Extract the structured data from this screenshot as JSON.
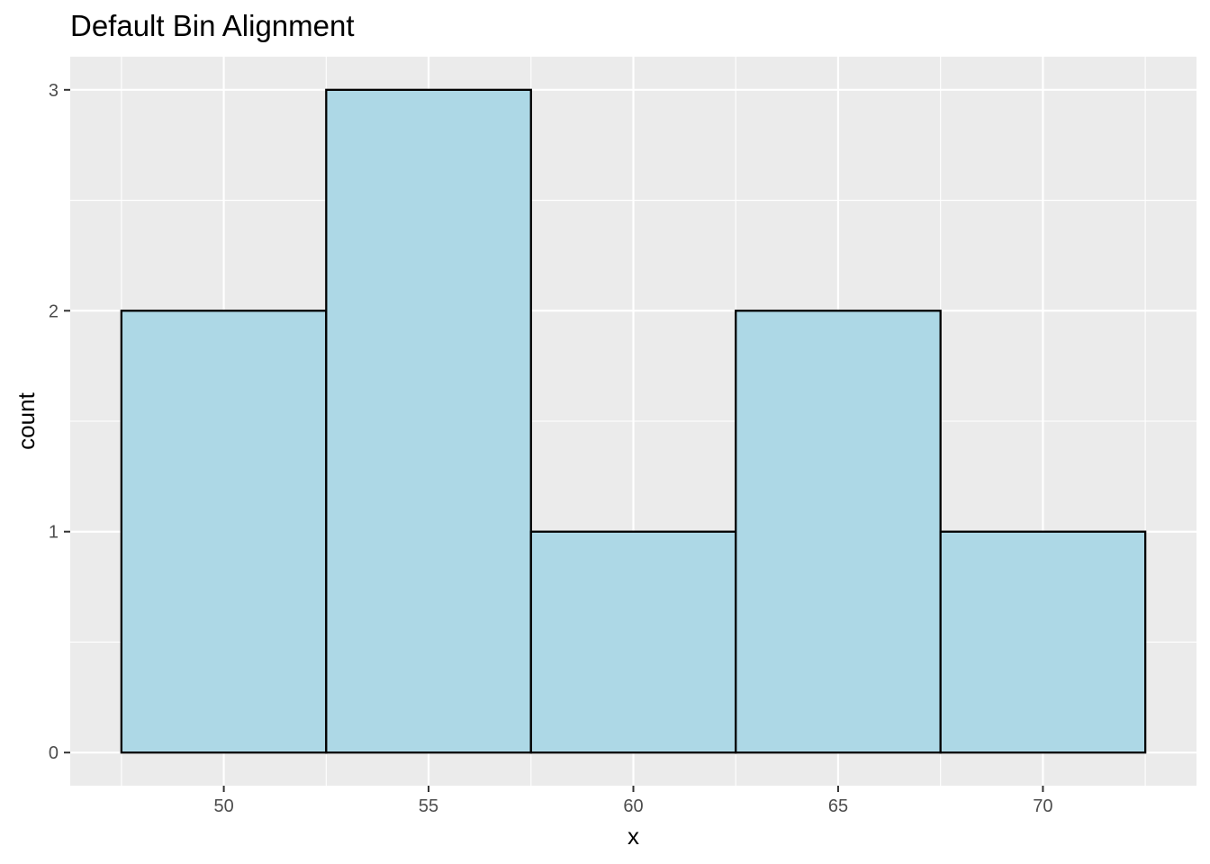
{
  "chart_data": {
    "type": "bar",
    "title": "Default Bin Alignment",
    "xlabel": "x",
    "ylabel": "count",
    "bins": [
      {
        "x_min": 47.5,
        "x_max": 52.5,
        "count": 2
      },
      {
        "x_min": 52.5,
        "x_max": 57.5,
        "count": 3
      },
      {
        "x_min": 57.5,
        "x_max": 62.5,
        "count": 1
      },
      {
        "x_min": 62.5,
        "x_max": 67.5,
        "count": 2
      },
      {
        "x_min": 67.5,
        "x_max": 72.5,
        "count": 1
      }
    ],
    "x_ticks": [
      50,
      55,
      60,
      65,
      70
    ],
    "y_ticks": [
      0,
      1,
      2,
      3
    ],
    "xlim": [
      46.25,
      73.75
    ],
    "ylim": [
      -0.15,
      3.15
    ],
    "grid": true,
    "colors": {
      "panel_background": "#ebebeb",
      "grid": "#ffffff",
      "bar_fill": "#add8e6",
      "bar_outline": "#000000"
    }
  }
}
